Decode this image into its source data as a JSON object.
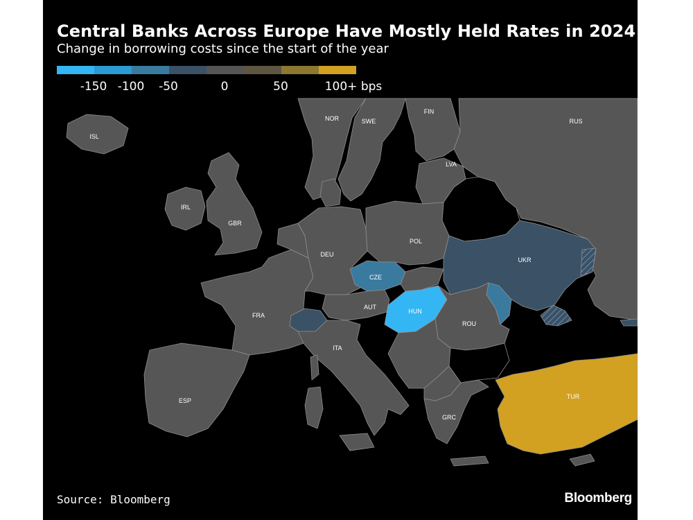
{
  "title": "Central Banks Across Europe Have Mostly Held Rates in 2024",
  "subtitle": "Change in borrowing costs since the start of the year",
  "legend": {
    "colors": [
      "#35b6f4",
      "#2c9ad3",
      "#3a7a9f",
      "#3a5166",
      "#555555",
      "#5e5643",
      "#8e7731",
      "#d2a122"
    ],
    "labels": [
      "-150",
      "-100",
      "-50",
      "0",
      "50",
      "100+ bps"
    ]
  },
  "map": {
    "colors": {
      "zero": "#565656",
      "ukr": "#3a5166",
      "cze": "#3a7a9f",
      "hun": "#35b6f4",
      "tur": "#d2a122",
      "mda": "#3a7a9f",
      "che": "#3a5166",
      "blr": "#000000"
    },
    "country_labels": {
      "isl": "ISL",
      "nor": "NOR",
      "swe": "SWE",
      "fin": "FIN",
      "rus": "RUS",
      "lva": "LVA",
      "irl": "IRL",
      "gbr": "GBR",
      "deu": "DEU",
      "pol": "POL",
      "ukr": "UKR",
      "cze": "CZE",
      "fra": "FRA",
      "aut": "AUT",
      "hun": "HUN",
      "rou": "ROU",
      "ita": "ITA",
      "esp": "ESP",
      "grc": "GRC",
      "tur": "TUR"
    }
  },
  "footer": {
    "source": "Source: Bloomberg",
    "brand": "Bloomberg"
  }
}
